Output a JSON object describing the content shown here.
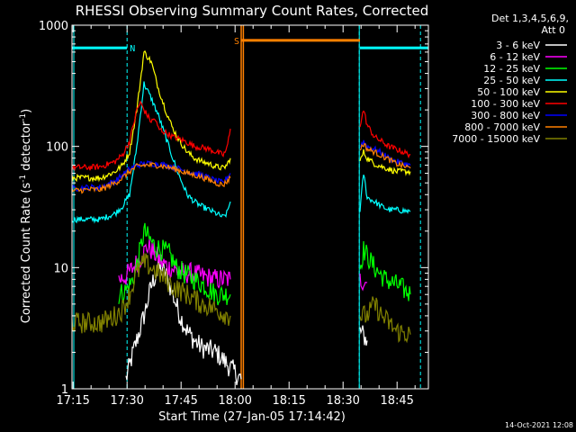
{
  "chart_data": {
    "type": "line",
    "title": "RHESSI Observing Summary Count Rates, Corrected",
    "xlabel": "Start Time (27-Jan-05 17:14:42)",
    "ylabel": "Corrected Count Rate (s",
    "ylabel_sup1": "-1",
    "ylabel_mid": " detector",
    "ylabel_sup2": "-1",
    "ylabel_end": ")",
    "x_ticks": [
      "17:15",
      "17:30",
      "17:45",
      "18:00",
      "18:15",
      "18:30",
      "18:45"
    ],
    "x_tick_minutes": [
      0.3,
      15.3,
      30.3,
      45.3,
      60.3,
      75.3,
      90.3
    ],
    "xlim_minutes": [
      0,
      99
    ],
    "y_scale": "log",
    "ylim": [
      1,
      1000
    ],
    "y_ticks": [
      "1",
      "10",
      "100",
      "1000"
    ],
    "y_tick_values": [
      1,
      10,
      100,
      1000
    ],
    "legend_header": [
      "Det 1,3,4,5,6,9,",
      "Att 0"
    ],
    "series": [
      {
        "name": "3 - 6 keV",
        "color": "#ffffff",
        "points": [
          [
            15,
            1.2
          ],
          [
            17,
            2
          ],
          [
            20,
            4
          ],
          [
            22,
            7
          ],
          [
            24,
            10
          ],
          [
            26,
            9
          ],
          [
            28,
            6
          ],
          [
            30,
            4
          ],
          [
            32,
            3
          ],
          [
            34,
            2.5
          ],
          [
            36,
            2.2
          ],
          [
            40,
            2
          ],
          [
            44,
            1.5
          ],
          [
            47,
            1.2
          ]
        ],
        "post": [
          [
            80,
            3
          ],
          [
            82,
            2.5
          ]
        ]
      },
      {
        "name": "6 - 12 keV",
        "color": "#ff00ff",
        "points": [
          [
            13,
            8
          ],
          [
            15,
            8.5
          ],
          [
            17,
            10
          ],
          [
            19,
            12
          ],
          [
            21,
            15
          ],
          [
            23,
            13
          ],
          [
            25,
            11
          ],
          [
            27,
            10
          ],
          [
            29,
            9.5
          ],
          [
            31,
            9
          ],
          [
            33,
            9
          ],
          [
            36,
            8.5
          ],
          [
            40,
            8
          ],
          [
            44,
            8
          ]
        ],
        "post": [
          [
            80,
            8
          ],
          [
            82,
            7.5
          ]
        ]
      },
      {
        "name": "12 - 25 keV",
        "color": "#00ff00",
        "points": [
          [
            13,
            6
          ],
          [
            15,
            6.5
          ],
          [
            17,
            8
          ],
          [
            19,
            14
          ],
          [
            20,
            20
          ],
          [
            21,
            18
          ],
          [
            23,
            15
          ],
          [
            25,
            14
          ],
          [
            27,
            13
          ],
          [
            29,
            10
          ],
          [
            31,
            9
          ],
          [
            34,
            8
          ],
          [
            37,
            7
          ],
          [
            40,
            6
          ],
          [
            44,
            6
          ]
        ],
        "post": [
          [
            80,
            10
          ],
          [
            81,
            14
          ],
          [
            84,
            10
          ],
          [
            87,
            8
          ],
          [
            91,
            7
          ],
          [
            94,
            6
          ]
        ]
      },
      {
        "name": "25 - 50 keV",
        "color": "#00ffff",
        "points": [
          [
            0,
            25
          ],
          [
            5,
            25
          ],
          [
            8,
            25
          ],
          [
            12,
            28
          ],
          [
            14,
            32
          ],
          [
            16,
            40
          ],
          [
            18,
            100
          ],
          [
            20,
            330
          ],
          [
            22,
            250
          ],
          [
            24,
            180
          ],
          [
            26,
            120
          ],
          [
            28,
            80
          ],
          [
            30,
            55
          ],
          [
            32,
            40
          ],
          [
            34,
            35
          ],
          [
            36,
            32
          ],
          [
            38,
            30
          ],
          [
            40,
            28
          ],
          [
            42,
            26
          ],
          [
            43,
            28
          ],
          [
            44,
            35
          ]
        ],
        "post": [
          [
            80,
            30
          ],
          [
            81,
            60
          ],
          [
            82,
            38
          ],
          [
            84,
            35
          ],
          [
            86,
            32
          ],
          [
            88,
            30
          ],
          [
            90,
            30
          ],
          [
            94,
            29
          ]
        ]
      },
      {
        "name": "50 - 100 keV",
        "color": "#ffff00",
        "points": [
          [
            0,
            55
          ],
          [
            5,
            55
          ],
          [
            8,
            55
          ],
          [
            12,
            62
          ],
          [
            14,
            70
          ],
          [
            16,
            90
          ],
          [
            18,
            200
          ],
          [
            20,
            600
          ],
          [
            22,
            500
          ],
          [
            24,
            300
          ],
          [
            26,
            200
          ],
          [
            28,
            140
          ],
          [
            30,
            110
          ],
          [
            32,
            90
          ],
          [
            34,
            80
          ],
          [
            36,
            75
          ],
          [
            38,
            72
          ],
          [
            40,
            68
          ],
          [
            42,
            66
          ],
          [
            43,
            70
          ],
          [
            44,
            80
          ]
        ],
        "post": [
          [
            80,
            75
          ],
          [
            81,
            90
          ],
          [
            82,
            80
          ],
          [
            84,
            72
          ],
          [
            86,
            68
          ],
          [
            88,
            65
          ],
          [
            90,
            62
          ],
          [
            94,
            62
          ]
        ]
      },
      {
        "name": "100 - 300 keV",
        "color": "#ff0000",
        "points": [
          [
            0,
            67
          ],
          [
            5,
            67
          ],
          [
            8,
            68
          ],
          [
            12,
            75
          ],
          [
            14,
            85
          ],
          [
            16,
            110
          ],
          [
            18,
            200
          ],
          [
            19,
            230
          ],
          [
            20,
            200
          ],
          [
            22,
            160
          ],
          [
            23,
            170
          ],
          [
            24,
            140
          ],
          [
            26,
            130
          ],
          [
            28,
            120
          ],
          [
            30,
            115
          ],
          [
            32,
            108
          ],
          [
            34,
            100
          ],
          [
            36,
            98
          ],
          [
            38,
            95
          ],
          [
            40,
            90
          ],
          [
            42,
            85
          ],
          [
            43,
            95
          ],
          [
            44,
            140
          ]
        ],
        "post": [
          [
            80,
            150
          ],
          [
            81,
            200
          ],
          [
            82,
            150
          ],
          [
            84,
            120
          ],
          [
            86,
            110
          ],
          [
            88,
            100
          ],
          [
            90,
            95
          ],
          [
            94,
            85
          ]
        ]
      },
      {
        "name": "300 - 800 keV",
        "color": "#0000ff",
        "points": [
          [
            0,
            45
          ],
          [
            5,
            46
          ],
          [
            8,
            46
          ],
          [
            12,
            52
          ],
          [
            14,
            58
          ],
          [
            16,
            65
          ],
          [
            18,
            70
          ],
          [
            20,
            72
          ],
          [
            22,
            72
          ],
          [
            24,
            72
          ],
          [
            26,
            70
          ],
          [
            28,
            68
          ],
          [
            30,
            65
          ],
          [
            32,
            62
          ],
          [
            34,
            60
          ],
          [
            36,
            58
          ],
          [
            38,
            55
          ],
          [
            40,
            52
          ],
          [
            42,
            50
          ],
          [
            44,
            60
          ]
        ],
        "post": [
          [
            80,
            100
          ],
          [
            81,
            110
          ],
          [
            82,
            100
          ],
          [
            84,
            95
          ],
          [
            86,
            88
          ],
          [
            88,
            80
          ],
          [
            90,
            75
          ],
          [
            94,
            70
          ]
        ]
      },
      {
        "name": "800 - 7000 keV",
        "color": "#ff8000",
        "points": [
          [
            0,
            43
          ],
          [
            5,
            44
          ],
          [
            8,
            44
          ],
          [
            12,
            50
          ],
          [
            14,
            55
          ],
          [
            16,
            62
          ],
          [
            18,
            68
          ],
          [
            20,
            70
          ],
          [
            22,
            70
          ],
          [
            24,
            70
          ],
          [
            26,
            68
          ],
          [
            28,
            66
          ],
          [
            30,
            63
          ],
          [
            32,
            60
          ],
          [
            34,
            58
          ],
          [
            36,
            56
          ],
          [
            38,
            53
          ],
          [
            40,
            50
          ],
          [
            42,
            48
          ],
          [
            44,
            55
          ]
        ],
        "post": [
          [
            80,
            95
          ],
          [
            81,
            105
          ],
          [
            82,
            95
          ],
          [
            84,
            90
          ],
          [
            86,
            84
          ],
          [
            88,
            78
          ],
          [
            90,
            72
          ],
          [
            94,
            66
          ]
        ]
      },
      {
        "name": "7000 - 15000 keV",
        "color": "#808000",
        "points": [
          [
            0,
            3.5
          ],
          [
            4,
            3.5
          ],
          [
            8,
            3.5
          ],
          [
            12,
            4
          ],
          [
            14,
            4.5
          ],
          [
            16,
            6
          ],
          [
            18,
            9
          ],
          [
            20,
            11
          ],
          [
            22,
            10
          ],
          [
            24,
            9
          ],
          [
            26,
            8
          ],
          [
            28,
            7
          ],
          [
            30,
            6.5
          ],
          [
            32,
            6
          ],
          [
            34,
            5.5
          ],
          [
            36,
            5
          ],
          [
            38,
            4.8
          ],
          [
            40,
            4.5
          ],
          [
            42,
            4.2
          ],
          [
            44,
            4
          ]
        ],
        "post": [
          [
            80,
            4
          ],
          [
            82,
            4
          ],
          [
            84,
            5
          ],
          [
            86,
            4
          ],
          [
            88,
            3.5
          ],
          [
            90,
            3
          ],
          [
            94,
            2.8
          ]
        ]
      }
    ],
    "attenuator_blocks": [
      {
        "label": "N",
        "x": [
          -1,
          15.3
        ],
        "y": 650,
        "color": "#00ffff"
      },
      {
        "label": "S",
        "x": [
          47,
          80
        ],
        "y": 750,
        "color": "#ff8000"
      },
      {
        "label": "",
        "x": [
          80,
          99
        ],
        "y": 650,
        "color": "#00ffff"
      }
    ],
    "night_lines_minutes": [
      15.3,
      79.8,
      96.8
    ],
    "saa_lines_minutes": [
      47,
      47.6
    ],
    "timestamp": "14-Oct-2021 12:08"
  }
}
